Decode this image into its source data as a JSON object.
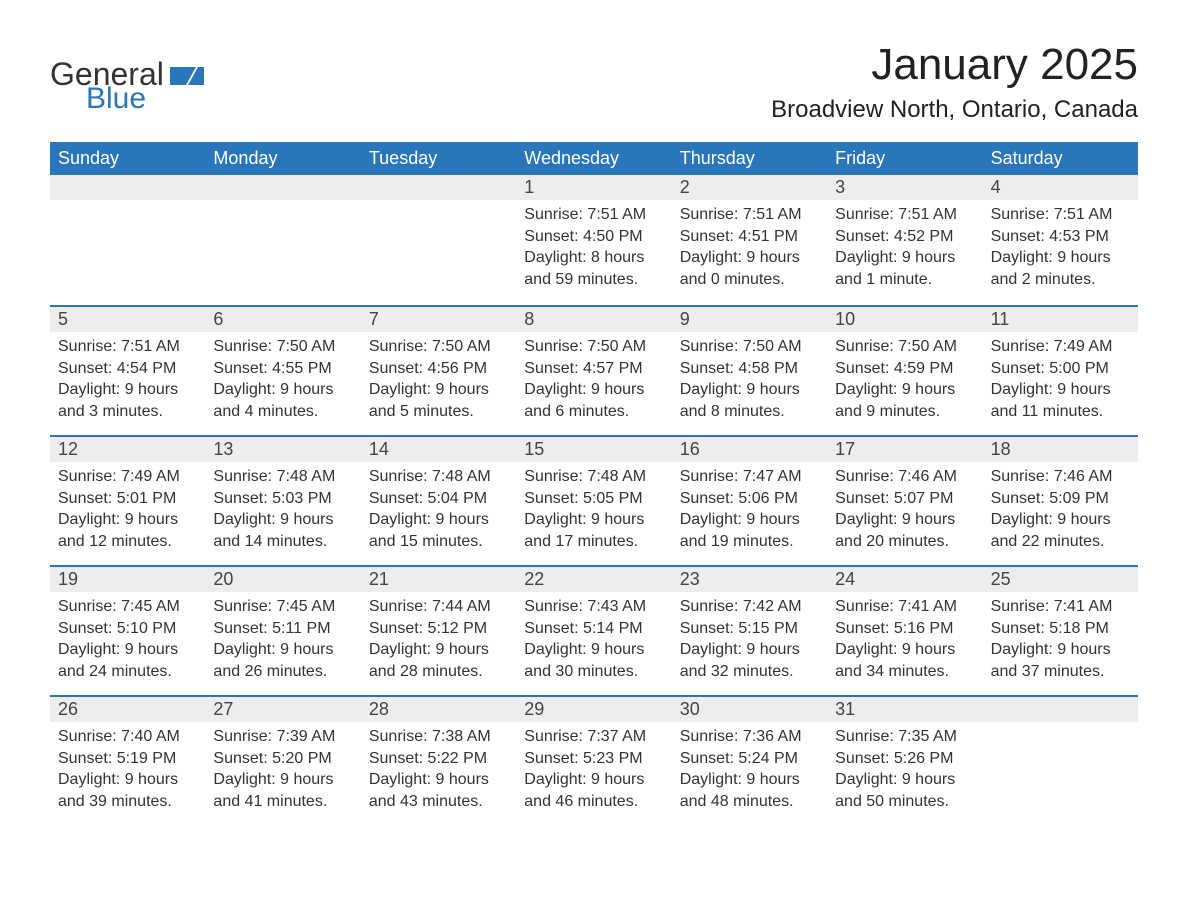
{
  "logo": {
    "general": "General",
    "blue": "Blue"
  },
  "title": "January 2025",
  "subtitle": "Broadview North, Ontario, Canada",
  "colors": {
    "header_bg": "#2a76bb",
    "header_text": "#ffffff",
    "daynum_bg": "#ededed",
    "row_border": "#2a76bb",
    "body_text": "#333333",
    "page_bg": "#ffffff"
  },
  "typography": {
    "title_fontsize": 44,
    "subtitle_fontsize": 24,
    "weekday_fontsize": 18,
    "daynum_fontsize": 18,
    "body_fontsize": 16
  },
  "layout": {
    "columns": 7,
    "weeks": 5,
    "start_day_index": 3
  },
  "weekdays": [
    "Sunday",
    "Monday",
    "Tuesday",
    "Wednesday",
    "Thursday",
    "Friday",
    "Saturday"
  ],
  "days": [
    {
      "n": 1,
      "sunrise": "7:51 AM",
      "sunset": "4:50 PM",
      "daylight": "8 hours and 59 minutes."
    },
    {
      "n": 2,
      "sunrise": "7:51 AM",
      "sunset": "4:51 PM",
      "daylight": "9 hours and 0 minutes."
    },
    {
      "n": 3,
      "sunrise": "7:51 AM",
      "sunset": "4:52 PM",
      "daylight": "9 hours and 1 minute."
    },
    {
      "n": 4,
      "sunrise": "7:51 AM",
      "sunset": "4:53 PM",
      "daylight": "9 hours and 2 minutes."
    },
    {
      "n": 5,
      "sunrise": "7:51 AM",
      "sunset": "4:54 PM",
      "daylight": "9 hours and 3 minutes."
    },
    {
      "n": 6,
      "sunrise": "7:50 AM",
      "sunset": "4:55 PM",
      "daylight": "9 hours and 4 minutes."
    },
    {
      "n": 7,
      "sunrise": "7:50 AM",
      "sunset": "4:56 PM",
      "daylight": "9 hours and 5 minutes."
    },
    {
      "n": 8,
      "sunrise": "7:50 AM",
      "sunset": "4:57 PM",
      "daylight": "9 hours and 6 minutes."
    },
    {
      "n": 9,
      "sunrise": "7:50 AM",
      "sunset": "4:58 PM",
      "daylight": "9 hours and 8 minutes."
    },
    {
      "n": 10,
      "sunrise": "7:50 AM",
      "sunset": "4:59 PM",
      "daylight": "9 hours and 9 minutes."
    },
    {
      "n": 11,
      "sunrise": "7:49 AM",
      "sunset": "5:00 PM",
      "daylight": "9 hours and 11 minutes."
    },
    {
      "n": 12,
      "sunrise": "7:49 AM",
      "sunset": "5:01 PM",
      "daylight": "9 hours and 12 minutes."
    },
    {
      "n": 13,
      "sunrise": "7:48 AM",
      "sunset": "5:03 PM",
      "daylight": "9 hours and 14 minutes."
    },
    {
      "n": 14,
      "sunrise": "7:48 AM",
      "sunset": "5:04 PM",
      "daylight": "9 hours and 15 minutes."
    },
    {
      "n": 15,
      "sunrise": "7:48 AM",
      "sunset": "5:05 PM",
      "daylight": "9 hours and 17 minutes."
    },
    {
      "n": 16,
      "sunrise": "7:47 AM",
      "sunset": "5:06 PM",
      "daylight": "9 hours and 19 minutes."
    },
    {
      "n": 17,
      "sunrise": "7:46 AM",
      "sunset": "5:07 PM",
      "daylight": "9 hours and 20 minutes."
    },
    {
      "n": 18,
      "sunrise": "7:46 AM",
      "sunset": "5:09 PM",
      "daylight": "9 hours and 22 minutes."
    },
    {
      "n": 19,
      "sunrise": "7:45 AM",
      "sunset": "5:10 PM",
      "daylight": "9 hours and 24 minutes."
    },
    {
      "n": 20,
      "sunrise": "7:45 AM",
      "sunset": "5:11 PM",
      "daylight": "9 hours and 26 minutes."
    },
    {
      "n": 21,
      "sunrise": "7:44 AM",
      "sunset": "5:12 PM",
      "daylight": "9 hours and 28 minutes."
    },
    {
      "n": 22,
      "sunrise": "7:43 AM",
      "sunset": "5:14 PM",
      "daylight": "9 hours and 30 minutes."
    },
    {
      "n": 23,
      "sunrise": "7:42 AM",
      "sunset": "5:15 PM",
      "daylight": "9 hours and 32 minutes."
    },
    {
      "n": 24,
      "sunrise": "7:41 AM",
      "sunset": "5:16 PM",
      "daylight": "9 hours and 34 minutes."
    },
    {
      "n": 25,
      "sunrise": "7:41 AM",
      "sunset": "5:18 PM",
      "daylight": "9 hours and 37 minutes."
    },
    {
      "n": 26,
      "sunrise": "7:40 AM",
      "sunset": "5:19 PM",
      "daylight": "9 hours and 39 minutes."
    },
    {
      "n": 27,
      "sunrise": "7:39 AM",
      "sunset": "5:20 PM",
      "daylight": "9 hours and 41 minutes."
    },
    {
      "n": 28,
      "sunrise": "7:38 AM",
      "sunset": "5:22 PM",
      "daylight": "9 hours and 43 minutes."
    },
    {
      "n": 29,
      "sunrise": "7:37 AM",
      "sunset": "5:23 PM",
      "daylight": "9 hours and 46 minutes."
    },
    {
      "n": 30,
      "sunrise": "7:36 AM",
      "sunset": "5:24 PM",
      "daylight": "9 hours and 48 minutes."
    },
    {
      "n": 31,
      "sunrise": "7:35 AM",
      "sunset": "5:26 PM",
      "daylight": "9 hours and 50 minutes."
    }
  ],
  "labels": {
    "sunrise": "Sunrise:",
    "sunset": "Sunset:",
    "daylight": "Daylight:"
  }
}
